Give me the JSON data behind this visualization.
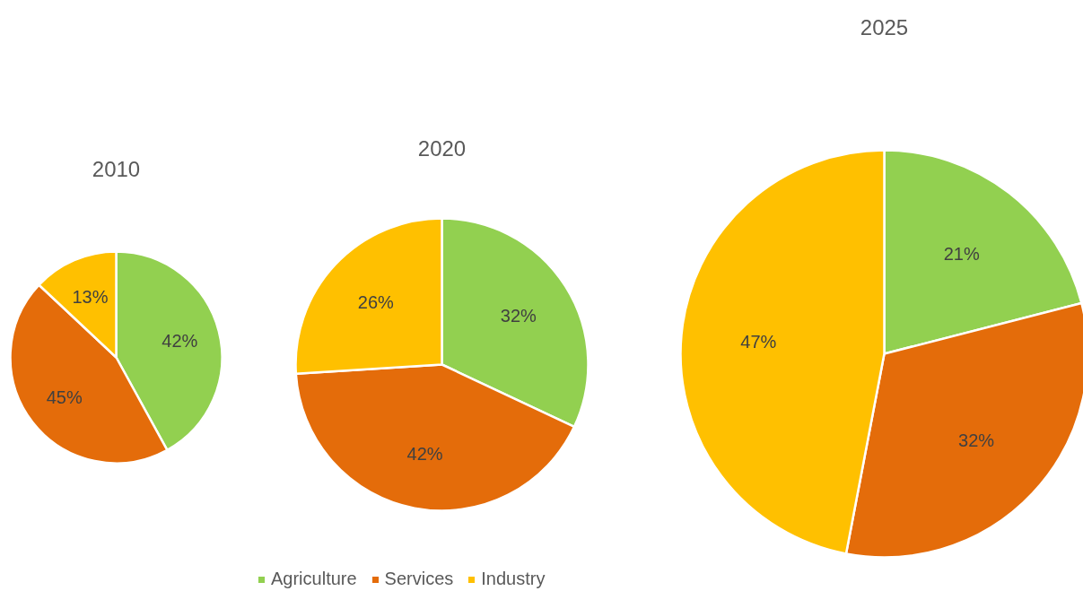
{
  "chart_data": [
    {
      "type": "pie",
      "title": "2010",
      "categories": [
        "Agriculture",
        "Services",
        "Industry"
      ],
      "values": [
        42,
        45,
        13
      ],
      "value_labels": [
        "42%",
        "45%",
        "13%"
      ],
      "colors": [
        "#92d050",
        "#e46c0a",
        "#ffc000"
      ],
      "legend": "bottom"
    },
    {
      "type": "pie",
      "title": "2020",
      "categories": [
        null,
        null,
        null
      ],
      "values": [
        32,
        42,
        26
      ],
      "value_labels": [
        "32%",
        "42%",
        "26%"
      ],
      "colors": [
        "#92d050",
        "#e46c0a",
        "#ffc000"
      ]
    },
    {
      "type": "pie",
      "title": "2025",
      "categories": [
        null,
        null,
        null
      ],
      "values": [
        21,
        32,
        47
      ],
      "value_labels": [
        "21%",
        "32%",
        "47%"
      ],
      "colors": [
        "#92d050",
        "#e46c0a",
        "#ffc000"
      ]
    }
  ]
}
